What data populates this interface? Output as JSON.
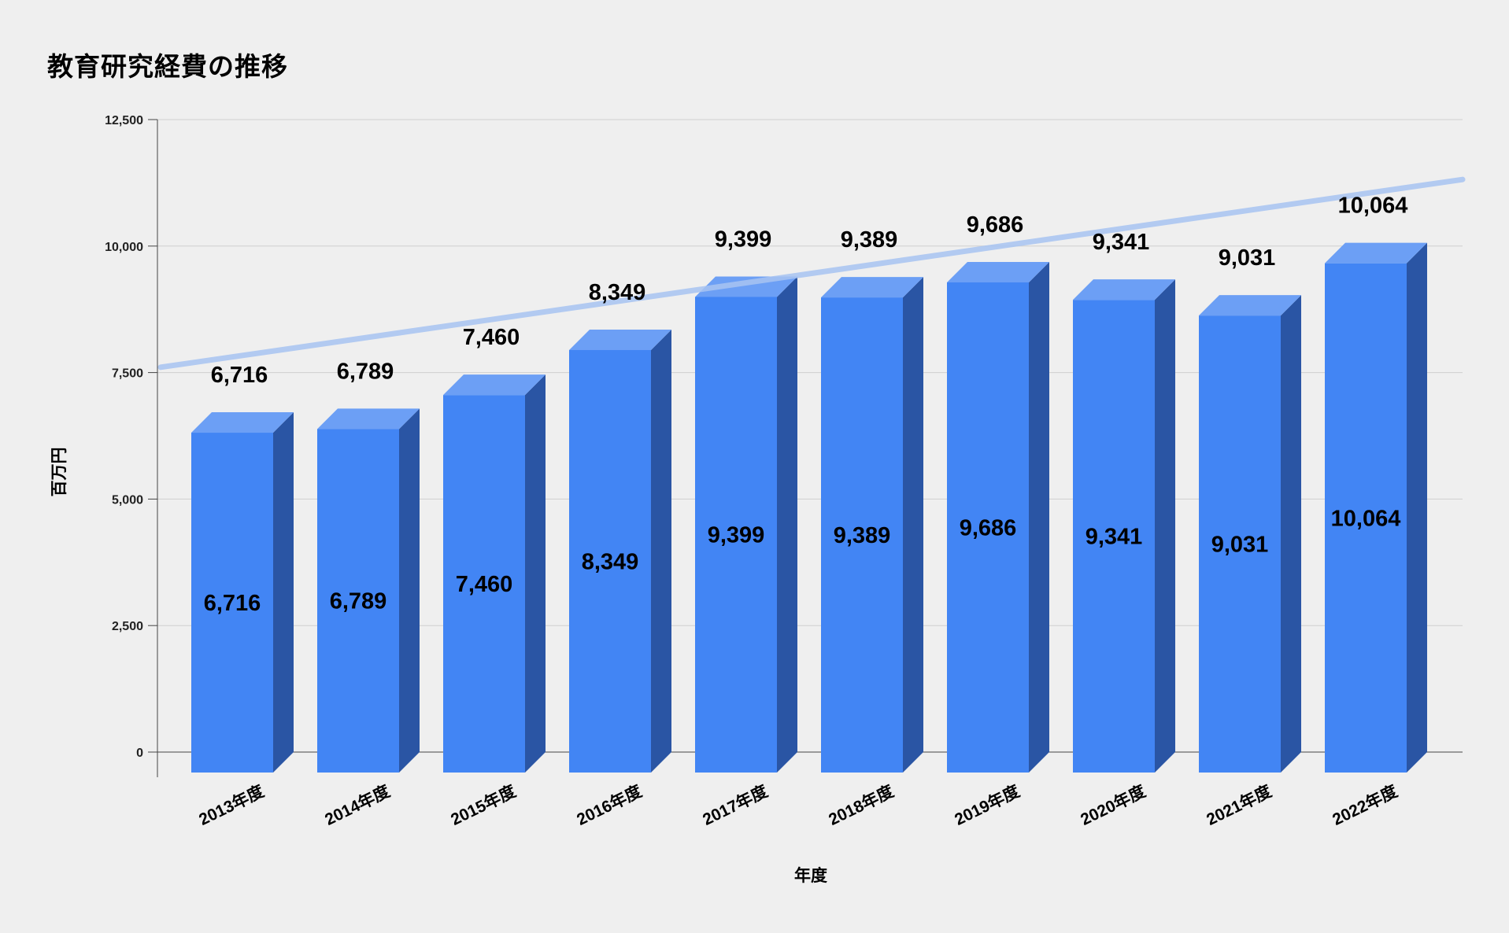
{
  "chart_data": {
    "type": "bar",
    "title": "教育研究経費の推移",
    "xlabel": "年度",
    "ylabel": "百万円",
    "ylim": [
      0,
      12500
    ],
    "yticks": [
      0,
      2500,
      5000,
      7500,
      10000,
      12500
    ],
    "ytick_labels": [
      "0",
      "2,500",
      "5,000",
      "7,500",
      "10,000",
      "12,500"
    ],
    "grid": true,
    "style": "3d-column",
    "trendline": "linear",
    "colors": {
      "bar_front": "#4285f4",
      "bar_top": "#6c9ff5",
      "bar_side": "#2a55a4",
      "trendline": "#a8c4f2",
      "grid": "#cfcfcf"
    },
    "categories": [
      "2013年度",
      "2014年度",
      "2015年度",
      "2016年度",
      "2017年度",
      "2018年度",
      "2019年度",
      "2020年度",
      "2021年度",
      "2022年度"
    ],
    "values": [
      6716,
      6789,
      7460,
      8349,
      9399,
      9389,
      9686,
      9341,
      9031,
      10064
    ],
    "data_labels": [
      "6,716",
      "6,789",
      "7,460",
      "8,349",
      "9,399",
      "9,389",
      "9,686",
      "9,341",
      "9,031",
      "10,064"
    ]
  }
}
